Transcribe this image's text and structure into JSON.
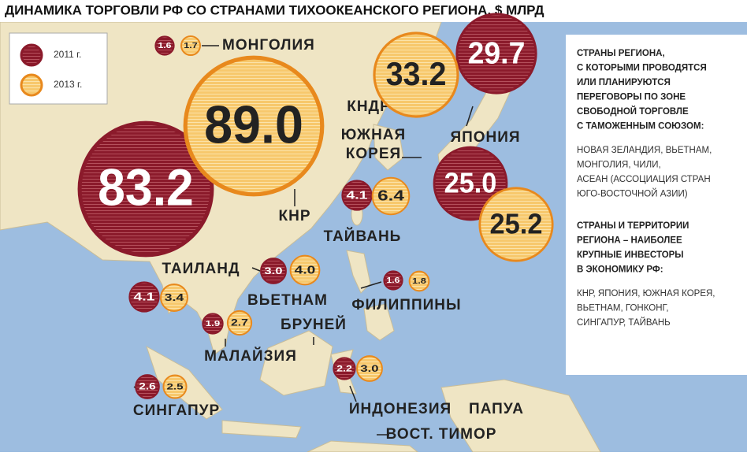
{
  "title": "ДИНАМИКА ТОРГОВЛИ РФ СО СТРАНАМИ ТИХООКЕАНСКОГО РЕГИОНА, $   МЛРД",
  "legend": [
    {
      "label": "2011 г.",
      "color": "#8b1a2b"
    },
    {
      "label": "2013 г.",
      "color": "#f7c86c"
    }
  ],
  "places": [
    {
      "name": "МОНГОЛИЯ",
      "values": [
        1.6,
        1.7
      ],
      "value_labels": [
        "1.6",
        "1.7"
      ]
    },
    {
      "name": "КНР",
      "values": [
        83.2,
        89.0
      ],
      "value_labels": [
        "83.2",
        "89.0"
      ]
    },
    {
      "name": "КНДР"
    },
    {
      "name": "ЯПОНИЯ",
      "values": [
        29.7,
        33.2
      ],
      "value_labels": [
        "29.7",
        "33.2"
      ]
    },
    {
      "name": [
        "ЮЖНАЯ",
        "КОРЕЯ"
      ],
      "values": [
        25.0,
        25.2
      ],
      "value_labels": [
        "25.0",
        "25.2"
      ]
    },
    {
      "name": "ТАЙВАНЬ",
      "values": [
        4.1,
        6.4
      ],
      "value_labels": [
        "4.1",
        "6.4"
      ]
    },
    {
      "name": "ТАИЛАНД",
      "values": [
        4.1,
        3.4
      ],
      "value_labels": [
        "4.1",
        "3.4"
      ]
    },
    {
      "name": "ВЬЕТНАМ",
      "values": [
        3.0,
        4.0
      ],
      "value_labels": [
        "3.0",
        "4.0"
      ]
    },
    {
      "name": "ФИЛИППИНЫ",
      "values": [
        1.6,
        1.8
      ],
      "value_labels": [
        "1.6",
        "1.8"
      ]
    },
    {
      "name": "БРУНЕЙ"
    },
    {
      "name": "МАЛАЙЗИЯ",
      "values": [
        1.9,
        2.7
      ],
      "value_labels": [
        "1.9",
        "2.7"
      ]
    },
    {
      "name": "СИНГАПУР",
      "values": [
        2.6,
        2.5
      ],
      "value_labels": [
        "2.6",
        "2.5"
      ]
    },
    {
      "name": "ИНДОНЕЗИЯ",
      "values": [
        2.2,
        3.0
      ],
      "value_labels": [
        "2.2",
        "3.0"
      ]
    },
    {
      "name": "ПАПУА"
    },
    {
      "name": "ВОСТ. ТИМОР"
    }
  ],
  "panel": {
    "heading1": [
      "СТРАНЫ РЕГИОНА,",
      "С КОТОРЫМИ ПРОВОДЯТСЯ",
      "ИЛИ ПЛАНИРУЮТСЯ",
      "ПЕРЕГОВОРЫ ПО ЗОНЕ",
      "СВОБОДНОЙ ТОРГОВЛЕ",
      "С ТАМОЖЕННЫМ СОЮЗОМ:"
    ],
    "text1": [
      "НОВАЯ ЗЕЛАНДИЯ, ВЬЕТНАМ,",
      "МОНГОЛИЯ, ЧИЛИ,",
      "АСЕАН (АССОЦИАЦИЯ СТРАН",
      "ЮГО-ВОСТОЧНОЙ АЗИИ)"
    ],
    "heading2": [
      "СТРАНЫ И ТЕРРИТОРИИ",
      "РЕГИОНА – НАИБОЛЕЕ",
      "КРУПНЫЕ ИНВЕСТОРЫ",
      "В ЭКОНОМИКУ РФ:"
    ],
    "text2": [
      "КНР, ЯПОНИЯ, ЮЖНАЯ КОРЕЯ,",
      "ВЬЕТНАМ, ГОНКОНГ,",
      "СИНГАПУР, ТАЙВАНЬ"
    ]
  }
}
